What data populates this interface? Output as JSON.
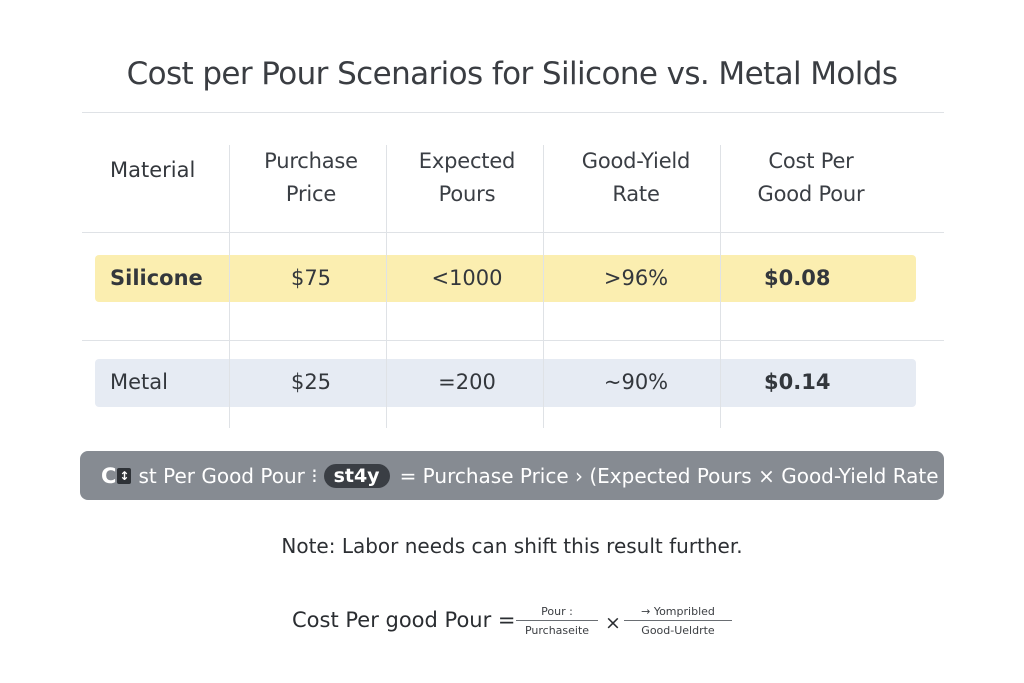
{
  "title": "Cost per Pour Scenarios for Silicone vs. Metal Molds",
  "table": {
    "headers": [
      {
        "line1": "Material",
        "line2": ""
      },
      {
        "line1": "Purchase",
        "line2": "Price"
      },
      {
        "line1": "Expected",
        "line2": "Pours"
      },
      {
        "line1": "Good-Yield",
        "line2": "Rate"
      },
      {
        "line1": "Cost Per",
        "line2": "Good Pour"
      }
    ],
    "rows": [
      {
        "material": "Silicone",
        "price": "$75",
        "pours": "<1000",
        "yield": ">96%",
        "cost": "$0.08",
        "band_color": "#fbeeb0"
      },
      {
        "material": "Metal",
        "price": "$25",
        "pours": "=200",
        "yield": "~90%",
        "cost": "$0.14",
        "band_color": "#e6ebf3"
      }
    ]
  },
  "formula_bar": {
    "icon_text": "C",
    "icon_glyph": "↕",
    "prefix": "st Per Good Pour ⁝",
    "pill": "st4y",
    "expression": "= Purchase Price › (Expected Pours × Good-Yield Rate",
    "background": "#868b92"
  },
  "note": "Note: Labor needs can shift this result further.",
  "bottom_formula": {
    "lhs": "Cost Per good Pour =",
    "frac1_num": "Pour :",
    "frac1_den": "Purchaseite",
    "times": "×",
    "frac2_num": "→ Yompribled",
    "frac2_den": "Good-Ueldrte"
  }
}
